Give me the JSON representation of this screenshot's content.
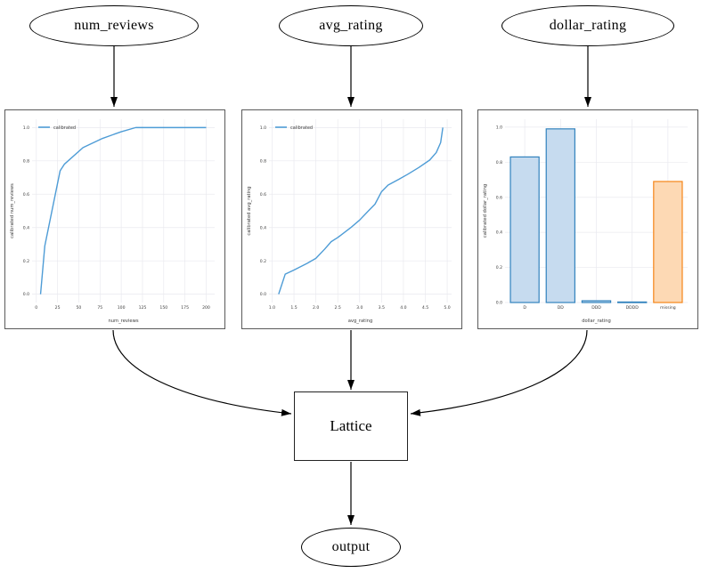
{
  "diagram": {
    "nodes": {
      "num_reviews": {
        "label": "num_reviews"
      },
      "avg_rating": {
        "label": "avg_rating"
      },
      "dollar_rating": {
        "label": "dollar_rating"
      },
      "lattice": {
        "label": "Lattice"
      },
      "output": {
        "label": "output"
      }
    }
  },
  "colors": {
    "line_blue": "#4e9cd6",
    "bar_blue_fill": "#c6dbef",
    "bar_blue_edge": "#3182bd",
    "bar_orange_fill": "#fdd9b4",
    "bar_orange_edge": "#f58518",
    "grid": "#e9e9ef",
    "tick_text": "#3c3c3c",
    "edge_black": "#000000"
  },
  "chart_data": [
    {
      "id": "num_reviews_calibrator",
      "type": "line",
      "title": "",
      "xlabel": "num_reviews",
      "ylabel": "calibrated num_reviews",
      "legend": [
        "calibrated"
      ],
      "legend_position": "upper left",
      "grid": true,
      "xlim": [
        -5,
        210
      ],
      "ylim": [
        -0.05,
        1.05
      ],
      "x_ticks": [
        0,
        25,
        50,
        75,
        100,
        125,
        150,
        175,
        200
      ],
      "x_tick_labels": [
        "0",
        "25",
        "50",
        "75",
        "100",
        "125",
        "150",
        "175",
        "200"
      ],
      "y_ticks": [
        0.0,
        0.2,
        0.4,
        0.6,
        0.8,
        1.0
      ],
      "y_tick_labels": [
        "0.0",
        "0.2",
        "0.4",
        "0.6",
        "0.8",
        "1.0"
      ],
      "series": [
        {
          "name": "calibrated",
          "color": "#4e9cd6",
          "points": [
            [
              5,
              0.0
            ],
            [
              10,
              0.29
            ],
            [
              28,
              0.74
            ],
            [
              33,
              0.78
            ],
            [
              55,
              0.88
            ],
            [
              78,
              0.935
            ],
            [
              100,
              0.975
            ],
            [
              117,
              1.0
            ],
            [
              200,
              1.0
            ]
          ]
        }
      ]
    },
    {
      "id": "avg_rating_calibrator",
      "type": "line",
      "title": "",
      "xlabel": "avg_rating",
      "ylabel": "calibrated avg_rating",
      "legend": [
        "calibrated"
      ],
      "legend_position": "upper left",
      "grid": true,
      "xlim": [
        0.93,
        5.1
      ],
      "ylim": [
        -0.05,
        1.05
      ],
      "x_ticks": [
        1.0,
        1.5,
        2.0,
        2.5,
        3.0,
        3.5,
        4.0,
        4.5,
        5.0
      ],
      "x_tick_labels": [
        "1.0",
        "1.5",
        "2.0",
        "2.5",
        "3.0",
        "3.5",
        "4.0",
        "4.5",
        "5.0"
      ],
      "y_ticks": [
        0.0,
        0.2,
        0.4,
        0.6,
        0.8,
        1.0
      ],
      "y_tick_labels": [
        "0.0",
        "0.2",
        "0.4",
        "0.6",
        "0.8",
        "1.0"
      ],
      "series": [
        {
          "name": "calibrated",
          "color": "#4e9cd6",
          "points": [
            [
              1.15,
              0.0
            ],
            [
              1.3,
              0.12
            ],
            [
              1.5,
              0.145
            ],
            [
              1.8,
              0.185
            ],
            [
              2.0,
              0.215
            ],
            [
              2.2,
              0.27
            ],
            [
              2.35,
              0.315
            ],
            [
              2.5,
              0.34
            ],
            [
              2.8,
              0.4
            ],
            [
              3.0,
              0.445
            ],
            [
              3.2,
              0.5
            ],
            [
              3.35,
              0.54
            ],
            [
              3.5,
              0.615
            ],
            [
              3.65,
              0.655
            ],
            [
              3.9,
              0.69
            ],
            [
              4.1,
              0.72
            ],
            [
              4.35,
              0.76
            ],
            [
              4.6,
              0.805
            ],
            [
              4.75,
              0.85
            ],
            [
              4.85,
              0.91
            ],
            [
              4.9,
              1.0
            ]
          ]
        }
      ]
    },
    {
      "id": "dollar_rating_calibrator",
      "type": "bar",
      "title": "",
      "xlabel": "dollar_rating",
      "ylabel": "calibrated dollar_rating",
      "grid": true,
      "categories": [
        "D",
        "DD",
        "DDD",
        "DDDD",
        "missing"
      ],
      "values": [
        0.83,
        0.99,
        0.01,
        0.003,
        0.69
      ],
      "bar_colors": [
        {
          "fill": "#c6dbef",
          "edge": "#3182bd"
        },
        {
          "fill": "#c6dbef",
          "edge": "#3182bd"
        },
        {
          "fill": "#c6dbef",
          "edge": "#3182bd"
        },
        {
          "fill": "#c6dbef",
          "edge": "#3182bd"
        },
        {
          "fill": "#fdd9b4",
          "edge": "#f58518"
        }
      ],
      "ylim": [
        0,
        1.045
      ],
      "y_ticks": [
        0.0,
        0.2,
        0.4,
        0.6,
        0.8,
        1.0
      ],
      "y_tick_labels": [
        "0.0",
        "0.2",
        "0.4",
        "0.6",
        "0.8",
        "1.0"
      ]
    }
  ]
}
